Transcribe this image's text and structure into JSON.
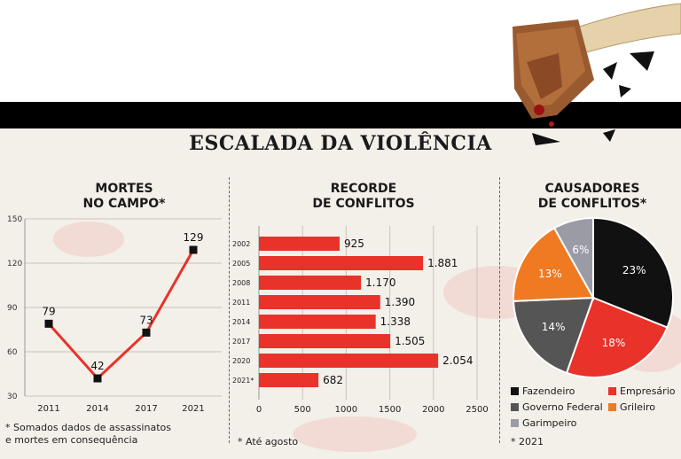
{
  "headline": "ESCALADA DA VIOLÊNCIA",
  "colors": {
    "red": "#e8322a",
    "black": "#111111",
    "dark_gray": "#555555",
    "orange": "#f07a22",
    "light_gray": "#9b9ba6"
  },
  "chart_data": [
    {
      "type": "line",
      "title": "MORTES\nNO CAMPO*",
      "x": [
        "2011",
        "2014",
        "2017",
        "2021"
      ],
      "values": [
        79,
        42,
        73,
        129
      ],
      "value_labels": [
        "79",
        "42",
        "73",
        "129"
      ],
      "y_ticks": [
        "150",
        "120",
        "90",
        "60",
        "30"
      ],
      "ylim": [
        30,
        150
      ],
      "note": "* Somados dados de assassinatos\ne mortes em consequência"
    },
    {
      "type": "bar",
      "orientation": "horizontal",
      "title": "RECORDE\nDE CONFLITOS",
      "categories": [
        "2002",
        "2005",
        "2008",
        "2011",
        "2014",
        "2017",
        "2020",
        "2021*"
      ],
      "values": [
        925,
        1881,
        1170,
        1390,
        1338,
        1505,
        2054,
        682
      ],
      "value_labels": [
        "925",
        "1.881",
        "1.170",
        "1.390",
        "1.338",
        "1.505",
        "2.054",
        "682"
      ],
      "x_ticks": [
        "0",
        "500",
        "1000",
        "1500",
        "2000",
        "2500"
      ],
      "xlim": [
        0,
        2500
      ],
      "note": "* Até agosto"
    },
    {
      "type": "pie",
      "title": "CAUSADORES\nDE CONFLITOS*",
      "slices": [
        {
          "name": "Fazendeiro",
          "value": 23,
          "label": "23%",
          "color": "#111111"
        },
        {
          "name": "Empresário",
          "value": 18,
          "label": "18%",
          "color": "#e8322a"
        },
        {
          "name": "Governo Federal",
          "value": 14,
          "label": "14%",
          "color": "#555555"
        },
        {
          "name": "Grileiro",
          "value": 13,
          "label": "13%",
          "color": "#f07a22"
        },
        {
          "name": "Garimpeiro",
          "value": 6,
          "label": "6%",
          "color": "#9b9ba6"
        }
      ],
      "note": "* 2021"
    }
  ]
}
